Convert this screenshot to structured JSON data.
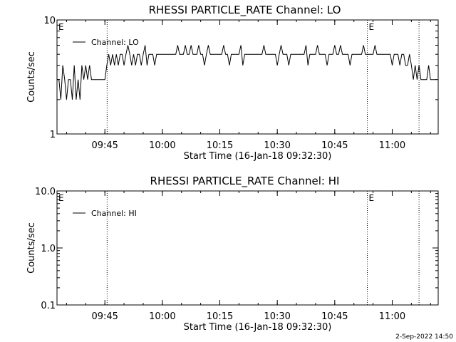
{
  "footer": {
    "datestamp": "2-Sep-2022 14:50"
  },
  "chart_data": [
    {
      "type": "line",
      "title": "RHESSI PARTICLE_RATE Channel: LO",
      "xlabel": "Start Time (16-Jan-18 09:32:30)",
      "ylabel": "Counts/sec",
      "yscale": "log",
      "ylim": [
        1,
        10
      ],
      "yticks": [
        "1",
        "10"
      ],
      "xlim": [
        "09:32:30",
        "11:12:00"
      ],
      "xticks": [
        "09:45",
        "10:00",
        "10:15",
        "10:30",
        "10:45",
        "11:00"
      ],
      "event_markers": [
        {
          "time": "09:45:35",
          "label": "E"
        },
        {
          "time": "10:53:30",
          "label": "E"
        },
        {
          "time": "11:07:00",
          "label": ""
        }
      ],
      "legend": {
        "position": "top-left",
        "entries": [
          "Channel: LO"
        ]
      },
      "series": [
        {
          "name": "Channel: LO",
          "x_minutes_from_start": [
            0,
            0.5,
            1,
            1.5,
            2,
            2.5,
            3,
            3.5,
            4,
            4.5,
            5,
            5.5,
            6,
            6.5,
            7,
            7.5,
            8,
            8.5,
            9,
            9.5,
            10,
            10.5,
            11,
            11.5,
            12,
            12.5,
            13,
            13.5,
            14,
            14.5,
            15,
            15.5,
            16,
            16.5,
            17,
            17.5,
            18,
            18.5,
            19,
            19.5,
            20,
            20.5,
            21,
            21.5,
            22,
            22.5,
            23,
            23.5,
            24,
            24.5,
            25,
            25.5,
            26,
            26.5,
            27,
            27.5,
            28,
            28.5,
            29,
            29.5,
            30,
            30.5,
            31,
            31.5,
            32,
            32.5,
            33,
            33.5,
            34,
            34.5,
            35,
            35.5,
            36,
            36.5,
            37,
            37.5,
            38,
            38.5,
            39,
            39.5,
            40,
            40.5,
            41,
            41.5,
            42,
            42.5,
            43,
            43.5,
            44,
            44.5,
            45,
            45.5,
            46,
            46.5,
            47,
            47.5,
            48,
            48.5,
            49,
            49.5,
            50,
            50.5,
            51,
            51.5,
            52,
            52.5,
            53,
            53.5,
            54,
            54.5,
            55,
            55.5,
            56,
            56.5,
            57,
            57.5,
            58,
            58.5,
            59,
            59.5,
            60,
            60.5,
            61,
            61.5,
            62,
            62.5,
            63,
            63.5,
            64,
            64.5,
            65,
            65.5,
            66,
            66.5,
            67,
            67.5,
            68,
            68.5,
            69,
            69.5,
            70,
            70.5,
            71,
            71.5,
            72,
            72.5,
            73,
            73.5,
            74,
            74.5,
            75,
            75.5,
            76,
            76.5,
            77,
            77.5,
            78,
            78.5,
            79,
            79.5,
            80,
            80.5,
            81,
            81.5,
            82,
            82.5,
            83,
            83.5,
            84,
            84.5,
            85,
            85.5,
            86,
            86.5,
            87,
            87.5,
            88,
            88.5,
            89,
            89.5,
            90,
            90.5,
            91,
            91.5,
            92,
            92.5,
            93,
            93.5,
            94,
            94.5,
            95,
            95.5,
            96,
            96.5,
            97,
            97.5,
            98,
            98.5,
            99
          ],
          "values": [
            3,
            3,
            2,
            4,
            3,
            2,
            3,
            3,
            2,
            4,
            2,
            3,
            2,
            4,
            3,
            4,
            3,
            4,
            3,
            3,
            3,
            3,
            3,
            3,
            3,
            3,
            4,
            5,
            4,
            5,
            4,
            5,
            4,
            5,
            5,
            4,
            5,
            6,
            5,
            4,
            5,
            4,
            5,
            5,
            4,
            5,
            6,
            4,
            5,
            5,
            5,
            4,
            5,
            5,
            5,
            5,
            5,
            5,
            5,
            5,
            5,
            5,
            5,
            6,
            5,
            5,
            5,
            6,
            5,
            5,
            6,
            5,
            5,
            5,
            6,
            5,
            5,
            4,
            5,
            6,
            5,
            5,
            5,
            5,
            5,
            5,
            5,
            6,
            5,
            5,
            4,
            5,
            5,
            5,
            5,
            5,
            6,
            4,
            5,
            5,
            5,
            5,
            5,
            5,
            5,
            5,
            5,
            5,
            6,
            5,
            5,
            5,
            5,
            5,
            5,
            4,
            5,
            6,
            5,
            5,
            5,
            4,
            5,
            5,
            5,
            5,
            5,
            5,
            5,
            5,
            6,
            4,
            5,
            5,
            5,
            5,
            6,
            5,
            5,
            5,
            5,
            4,
            5,
            5,
            5,
            6,
            5,
            5,
            6,
            5,
            5,
            5,
            5,
            4,
            5,
            5,
            5,
            5,
            5,
            5,
            6,
            5,
            5,
            5,
            5,
            5,
            6,
            5,
            5,
            5,
            5,
            5,
            5,
            5,
            5,
            4,
            5,
            5,
            5,
            4,
            5,
            5,
            4,
            4,
            5,
            4,
            3,
            4,
            3,
            4,
            3,
            3,
            3,
            3,
            4,
            3,
            3,
            3,
            3,
            2,
            3
          ]
        }
      ]
    },
    {
      "type": "line",
      "title": "RHESSI PARTICLE_RATE Channel: HI",
      "xlabel": "Start Time (16-Jan-18 09:32:30)",
      "ylabel": "Counts/sec",
      "yscale": "log",
      "ylim": [
        0.1,
        10
      ],
      "yticks": [
        "0.1",
        "1.0",
        "10.0"
      ],
      "xlim": [
        "09:32:30",
        "11:12:00"
      ],
      "xticks": [
        "09:45",
        "10:00",
        "10:15",
        "10:30",
        "10:45",
        "11:00"
      ],
      "event_markers": [
        {
          "time": "09:45:35",
          "label": "E"
        },
        {
          "time": "10:53:30",
          "label": "E"
        },
        {
          "time": "11:07:00",
          "label": ""
        }
      ],
      "legend": {
        "position": "top-left",
        "entries": [
          "Channel: HI"
        ]
      },
      "series": [
        {
          "name": "Channel: HI",
          "x_minutes_from_start": [],
          "values": []
        }
      ]
    }
  ]
}
